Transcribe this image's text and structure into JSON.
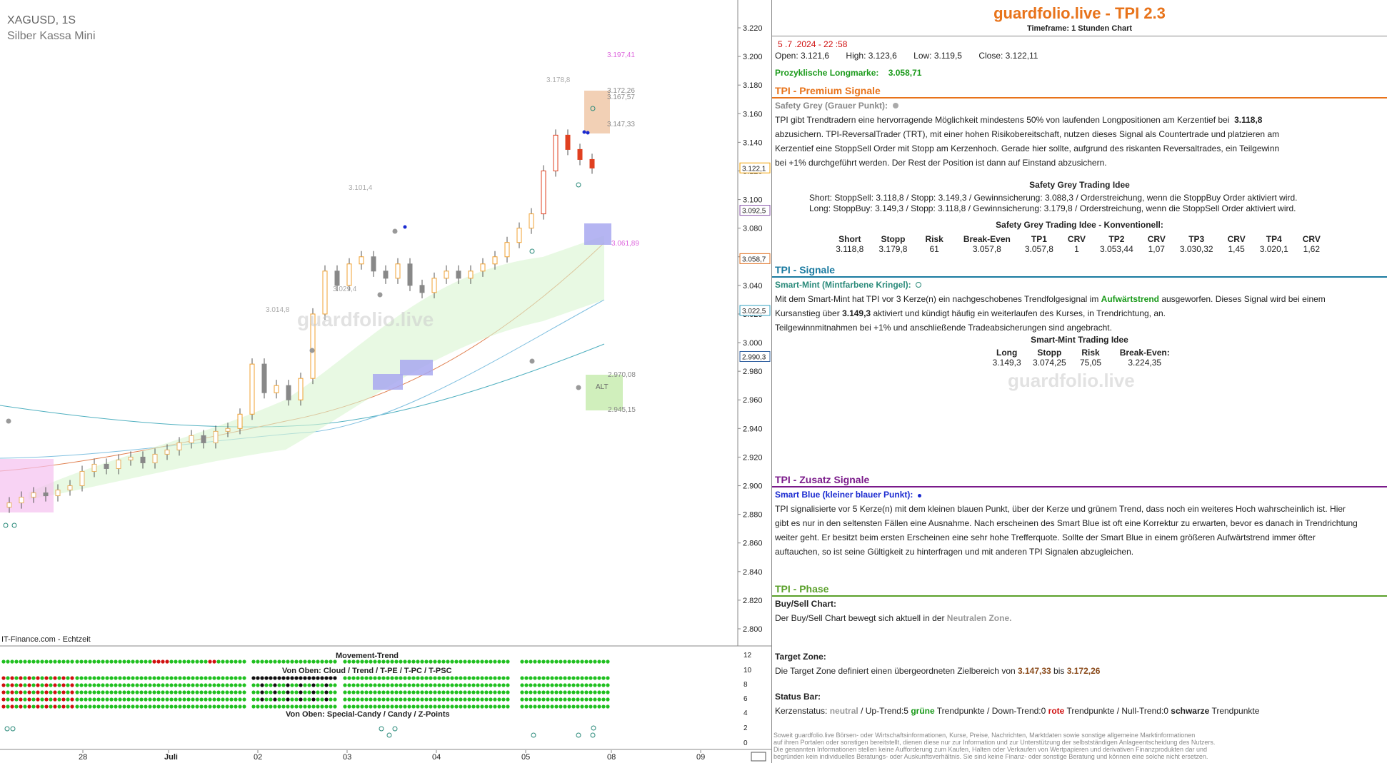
{
  "chart": {
    "symbol": "XAGUSD, 1S",
    "name": "Silber Kassa Mini",
    "watermark": "guardfolio.live",
    "source": "IT-Finance.com - Echtzeit",
    "price_ticks": [
      "3.220",
      "3.200",
      "3.180",
      "3.160",
      "3.140",
      "3.120",
      "3.100",
      "3.080",
      "3.060",
      "3.040",
      "3.020",
      "3.000",
      "2.980",
      "2.960",
      "2.940",
      "2.920",
      "2.900",
      "2.880",
      "2.860",
      "2.840",
      "2.820",
      "2.800"
    ],
    "price_badges": [
      {
        "text": "3.122,1",
        "color": "#f0a000",
        "value": 3.1221
      },
      {
        "text": "3.092,5",
        "color": "#8855aa",
        "value": 3.0925
      },
      {
        "text": "3.058,7",
        "color": "#e07020",
        "value": 3.0587
      },
      {
        "text": "3.022,5",
        "color": "#30a0c0",
        "value": 3.0225
      },
      {
        "text": "2.990,3",
        "color": "#3060a0",
        "value": 2.9903
      }
    ],
    "annotations": [
      {
        "text": "3.197,41",
        "color": "#dd66dd"
      },
      {
        "text": "3.178,8",
        "color": "#aaa"
      },
      {
        "text": "3.172,26",
        "color": "#888"
      },
      {
        "text": "3.167,57",
        "color": "#888"
      },
      {
        "text": "3.147,33",
        "color": "#888"
      },
      {
        "text": "3.101,4",
        "color": "#aaa"
      },
      {
        "text": "3.061,89",
        "color": "#dd66dd"
      },
      {
        "text": "3.029,4",
        "color": "#aaa"
      },
      {
        "text": "3.014,8",
        "color": "#aaa"
      },
      {
        "text": "2.970,08",
        "color": "#888"
      },
      {
        "text": "2.945,15",
        "color": "#888"
      },
      {
        "text": "ALT",
        "color": "#666"
      }
    ],
    "x_labels": [
      "28",
      "Juli",
      "02",
      "03",
      "04",
      "05",
      "08",
      "09"
    ],
    "indicator": {
      "title_movement": "Movement-Trend",
      "title_cloud": "Von Oben: Cloud / Trend / T-PE / T-PC / T-PSC",
      "title_candy": "Von Oben: Special-Candy / Candy / Z-Points",
      "ticks": [
        "12",
        "10",
        "8",
        "6",
        "4",
        "2",
        "0"
      ]
    }
  },
  "chart_data": {
    "type": "candlestick",
    "title": "XAGUSD, 1S",
    "x_categories": [
      "28",
      "Juli",
      "02",
      "03",
      "04",
      "05",
      "08",
      "09"
    ],
    "ylim": [
      2.79,
      3.225
    ],
    "closes": [
      2.888,
      2.892,
      2.895,
      2.893,
      2.897,
      2.9,
      2.91,
      2.915,
      2.912,
      2.918,
      2.92,
      2.916,
      2.922,
      2.925,
      2.93,
      2.935,
      2.93,
      2.938,
      2.94,
      2.95,
      2.985,
      2.965,
      2.97,
      2.96,
      2.975,
      3.02,
      3.05,
      3.04,
      3.055,
      3.06,
      3.05,
      3.045,
      3.055,
      3.04,
      3.035,
      3.045,
      3.05,
      3.045,
      3.05,
      3.055,
      3.06,
      3.07,
      3.08,
      3.09,
      3.12,
      3.145,
      3.135,
      3.128,
      3.122
    ],
    "last_close": 3.1221,
    "levels": {
      "target_low": 3.14733,
      "target_high": 3.17226,
      "alt_high": 2.97008,
      "alt_low": 2.94515
    }
  },
  "info": {
    "brand": "guardfolio.live - TPI 2.3",
    "timeframe": "Timeframe: 1 Stunden Chart",
    "date": "5 .7 .2024  - 22 :58",
    "open": "Open:  3.121,6",
    "high": "High:  3.123,6",
    "low": "Low:   3.119,5",
    "close": "Close: 3.122,11",
    "longmarke_label": "Prozyklische Longmarke:",
    "longmarke_value": "3.058,71",
    "premium_title": "TPI - Premium Signale",
    "safety_grey_label": "Safety Grey (Grauer Punkt):",
    "premium_p1a": "TPI gibt Trendtradern eine hervorragende Möglichkeit mindestens 50% von laufenden Longpositionen am Kerzentief bei ",
    "premium_p1b": "3.118,8",
    "premium_p2": "abzusichern. TPI-ReversalTrader (TRT), mit einer hohen Risikobereitschaft, nutzen dieses Signal als Countertrade und platzieren am",
    "premium_p3": "Kerzentief eine StoppSell Order mit Stopp am Kerzenhoch. Gerade hier sollte, aufgrund des riskanten Reversaltrades, ein Teilgewinn",
    "premium_p4": "bei +1% durchgeführt werden. Der Rest der Position ist dann auf Einstand abzusichern.",
    "sg_idea_title": "Safety Grey Trading Idee",
    "sg_short": "Short: StoppSell:   3.118,8  / Stopp:  3.149,3   / Gewinnsicherung: 3.088,3   / Orderstreichung, wenn die StoppBuy Order aktiviert wird.",
    "sg_long": "Long: StoppBuy:   3.149,3  / Stopp:  3.118,8  / Gewinnsicherung: 3.179,8   / Orderstreichung, wenn die StoppSell Order aktiviert wird.",
    "sg_konv_title": "Safety Grey Trading Idee - Konventionell:",
    "sg_table_head": [
      "Short",
      "Stopp",
      "Risk",
      "Break-Even",
      "TP1",
      "CRV",
      "TP2",
      "CRV",
      "TP3",
      "CRV",
      "TP4",
      "CRV"
    ],
    "sg_table_row": [
      "3.118,8",
      "3.179,8",
      "61",
      "3.057,8",
      "3.057,8",
      "1",
      "3.053,44",
      "1,07",
      "3.030,32",
      "1,45",
      "3.020,1",
      "1,62"
    ],
    "signale_title": "TPI - Signale",
    "smart_mint_label": "Smart-Mint (Mintfarbene Kringel):",
    "sm_p1a": "Mit dem Smart-Mint hat TPI vor 3  Kerze(n) ein nachgeschobenes Trendfolgesignal im ",
    "sm_p1b": "Aufwärtstrend",
    "sm_p1c": " ausgeworfen. Dieses Signal wird bei einem",
    "sm_p2a": "Kursanstieg über  ",
    "sm_p2b": "3.149,3",
    "sm_p2c": "    aktiviert und kündigt häufig ein weiterlaufen des Kurses, in Trendrichtung, an.",
    "sm_p3": "Teilgewinnmitnahmen bei +1% und anschließende Tradeabsicherungen sind angebracht.",
    "sm_idea_title": "Smart-Mint Trading Idee",
    "sm_table_head": [
      "Long",
      "Stopp",
      "Risk",
      "Break-Even:"
    ],
    "sm_table_row": [
      "3.149,3",
      "3.074,25",
      "75,05",
      "3.224,35"
    ],
    "zusatz_title": "TPI - Zusatz Signale",
    "smart_blue_label": "Smart Blue (kleiner blauer Punkt):",
    "sb_p1": "TPI signalisierte vor 5  Kerze(n) mit dem kleinen blauen Punkt, über der Kerze und grünem Trend, dass noch ein weiteres Hoch wahrscheinlich ist. Hier",
    "sb_p2": "gibt es nur in den seltensten Fällen eine Ausnahme. Nach erscheinen des Smart Blue ist oft eine Korrektur zu erwarten, bevor es danach in Trendrichtung",
    "sb_p3": "weiter geht. Er besitzt beim ersten Erscheinen eine sehr hohe Trefferquote. Sollte der Smart Blue in einem größeren Aufwärtstrend immer öfter",
    "sb_p4": "auftauchen, so ist seine Gültigkeit zu hinterfragen und mit anderen TPI Signalen abzugleichen.",
    "phase_title": "TPI - Phase",
    "bs_label": "Buy/Sell Chart:",
    "bs_text_a": "Der Buy/Sell Chart bewegt sich aktuell in der ",
    "bs_text_b": "Neutralen Zone.",
    "tz_label": "Target Zone:",
    "tz_text_a": "Die Target Zone definiert einen übergeordneten Zielbereich von  ",
    "tz_v1": "3.147,33",
    "tz_mid": "   bis  ",
    "tz_v2": "3.172,26",
    "status_label": "Status Bar:",
    "st_a": "Kerzenstatus: ",
    "st_neutral": "neutral",
    "st_b": "  / Up-Trend:5 ",
    "st_gruene": "grüne",
    "st_c": " Trendpunkte  / Down-Trend:0 ",
    "st_rote": "rote",
    "st_d": " Trendpunkte  / Null-Trend:0 ",
    "st_schwarze": "schwarze",
    "st_e": " Trendpunkte",
    "footer1": "Soweit guardfolio.live Börsen- oder Wirtschaftsinformationen, Kurse, Preise, Nachrichten, Marktdaten sowie sonstige allgemeine Marktinformationen",
    "footer2": "auf ihren Portalen oder sonstigen bereitstellt, dienen diese nur zur Information und zur Unterstützung der selbstständigen Anlageentscheidung des Nutzers.",
    "footer3": "Die genannten Informationen stellen keine Aufforderung zum Kaufen, Halten oder Verkaufen von Wertpapieren und derivativen Finanzprodukten dar und",
    "footer4": "begründen kein individuelles Beratungs- oder Auskunftsverhältnis. Sie sind keine Finanz- oder sonstige Beratung und können eine solche nicht ersetzen.",
    "colors": {
      "orange": "#e8731a",
      "blue": "#1a7aa0",
      "purple": "#7a1a8a",
      "green": "#5aa02a",
      "safety_grey": "#888",
      "smart_mint_color": "#2a8a7a",
      "smart_blue_color": "#1a2ad0"
    }
  }
}
